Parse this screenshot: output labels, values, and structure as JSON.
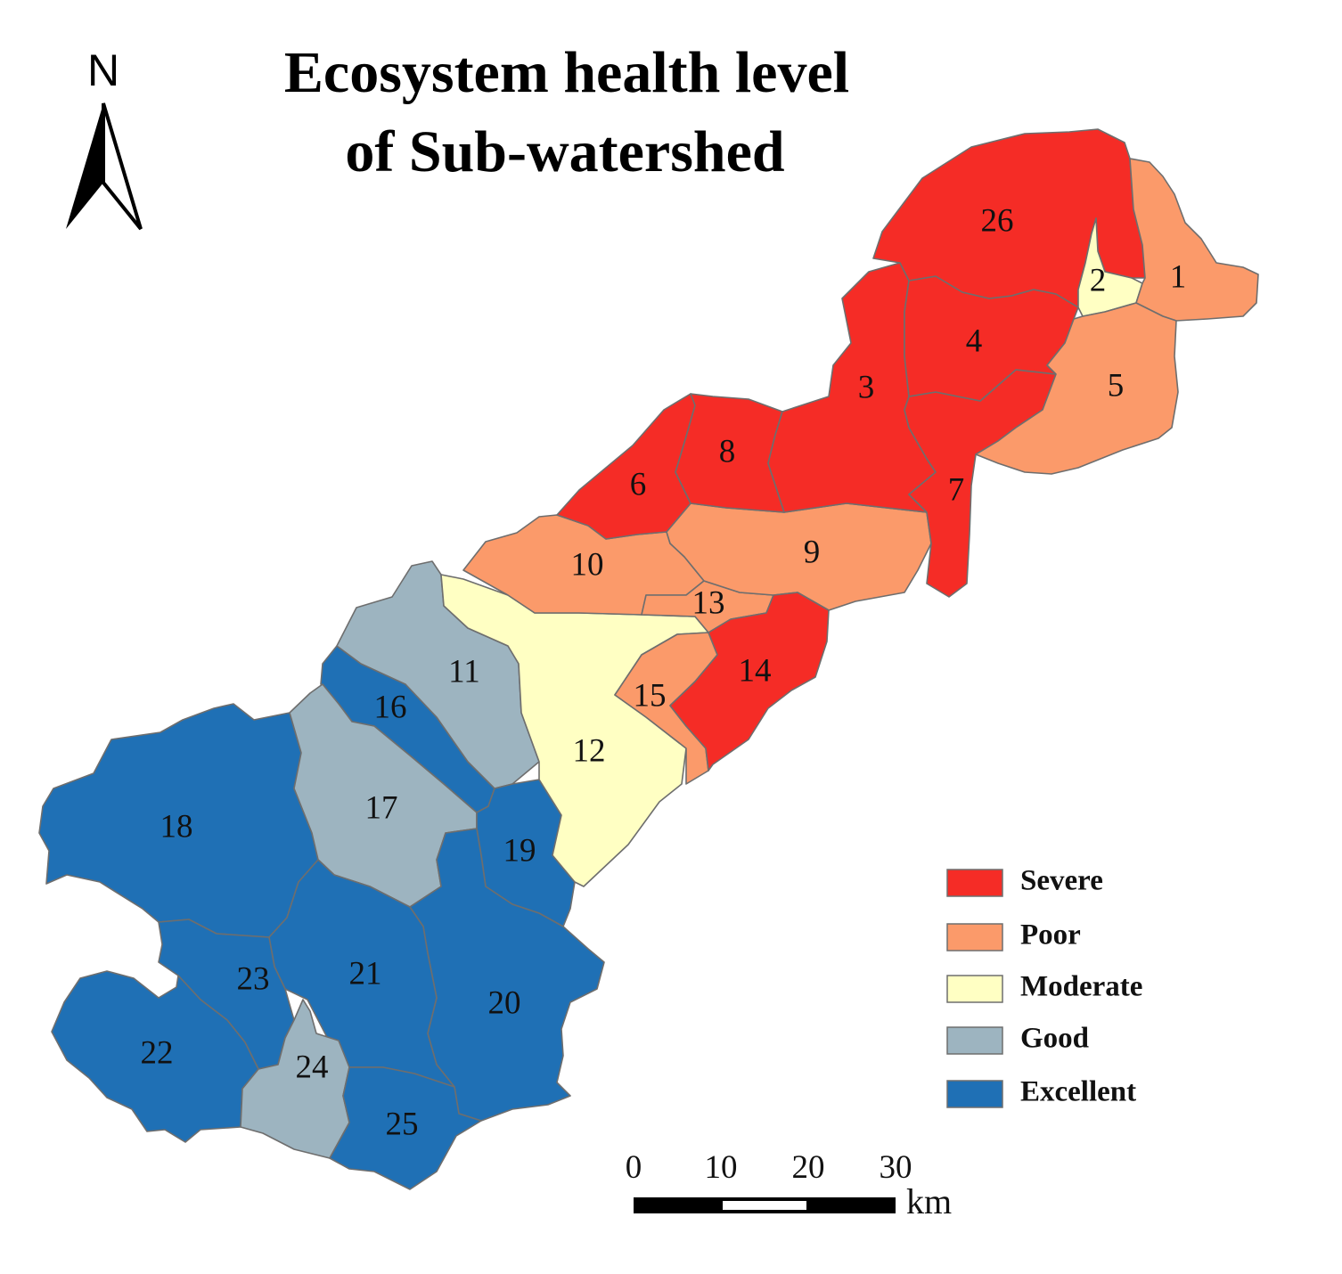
{
  "title": {
    "line1": "Ecosystem health level",
    "line2": "of Sub-watershed"
  },
  "north_arrow": {
    "label": "N",
    "icon": "north-arrow-icon"
  },
  "levels": {
    "severe": {
      "label": "Severe",
      "color": "#f52c26"
    },
    "poor": {
      "label": "Poor",
      "color": "#fb9a6a"
    },
    "moderate": {
      "label": "Moderate",
      "color": "#ffffc3"
    },
    "good": {
      "label": "Good",
      "color": "#9db4c0"
    },
    "excellent": {
      "label": "Excellent",
      "color": "#1f70b5"
    }
  },
  "legend": [
    {
      "key": "severe",
      "label": "Severe"
    },
    {
      "key": "poor",
      "label": "Poor"
    },
    {
      "key": "moderate",
      "label": "Moderate"
    },
    {
      "key": "good",
      "label": "Good"
    },
    {
      "key": "excellent",
      "label": "Excellent"
    }
  ],
  "sub_watersheds": [
    {
      "id": "1",
      "level": "poor"
    },
    {
      "id": "2",
      "level": "moderate"
    },
    {
      "id": "3",
      "level": "severe"
    },
    {
      "id": "4",
      "level": "severe"
    },
    {
      "id": "5",
      "level": "poor"
    },
    {
      "id": "6",
      "level": "severe"
    },
    {
      "id": "7",
      "level": "severe"
    },
    {
      "id": "8",
      "level": "severe"
    },
    {
      "id": "9",
      "level": "poor"
    },
    {
      "id": "10",
      "level": "poor"
    },
    {
      "id": "11",
      "level": "good"
    },
    {
      "id": "12",
      "level": "moderate"
    },
    {
      "id": "13",
      "level": "poor"
    },
    {
      "id": "14",
      "level": "severe"
    },
    {
      "id": "15",
      "level": "poor"
    },
    {
      "id": "16",
      "level": "excellent"
    },
    {
      "id": "17",
      "level": "good"
    },
    {
      "id": "18",
      "level": "excellent"
    },
    {
      "id": "19",
      "level": "excellent"
    },
    {
      "id": "20",
      "level": "excellent"
    },
    {
      "id": "21",
      "level": "excellent"
    },
    {
      "id": "22",
      "level": "excellent"
    },
    {
      "id": "23",
      "level": "excellent"
    },
    {
      "id": "24",
      "level": "good"
    },
    {
      "id": "25",
      "level": "excellent"
    },
    {
      "id": "26",
      "level": "severe"
    }
  ],
  "scale_bar": {
    "ticks": [
      "0",
      "10",
      "20",
      "30"
    ],
    "unit": "km"
  }
}
